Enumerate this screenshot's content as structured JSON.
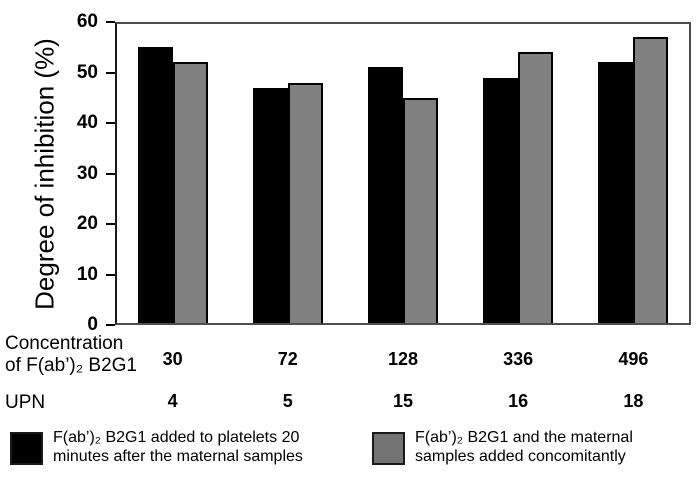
{
  "chart_data": {
    "type": "bar",
    "title": "",
    "ylabel": "Degree of inhibition (%)",
    "xlabel": "",
    "ylim": [
      0,
      60
    ],
    "yticks": [
      0,
      10,
      20,
      30,
      40,
      50,
      60
    ],
    "grid": false,
    "legend_position": "bottom",
    "categories": [
      "UPN 4",
      "UPN 5",
      "UPN 15",
      "UPN 16",
      "UPN 18"
    ],
    "series": [
      {
        "name": "F(ab’)₂ B2G1 added to platelets 20 minutes after the maternal samples",
        "color": "#000000",
        "values": [
          55,
          47,
          51,
          49,
          52
        ]
      },
      {
        "name": "F(ab’)₂ B2G1 and the maternal samples added concomitantly",
        "color": "#808080",
        "values": [
          52,
          48,
          45,
          54,
          57
        ]
      }
    ],
    "x_rows": [
      {
        "label_lines": [
          "Concentration",
          "of F(ab’)₂ B2G1"
        ],
        "values": [
          "30",
          "72",
          "128",
          "336",
          "496"
        ]
      },
      {
        "label_lines": [
          "UPN"
        ],
        "values": [
          "4",
          "5",
          "15",
          "16",
          "18"
        ]
      }
    ],
    "legend": [
      {
        "lines": [
          "F(ab’)₂ B2G1 added to platelets 20",
          "minutes after the maternal samples"
        ],
        "color": "#000000"
      },
      {
        "lines": [
          "F(ab’)₂ B2G1 and the maternal",
          "samples added concomitantly"
        ],
        "color": "#737373"
      }
    ]
  }
}
